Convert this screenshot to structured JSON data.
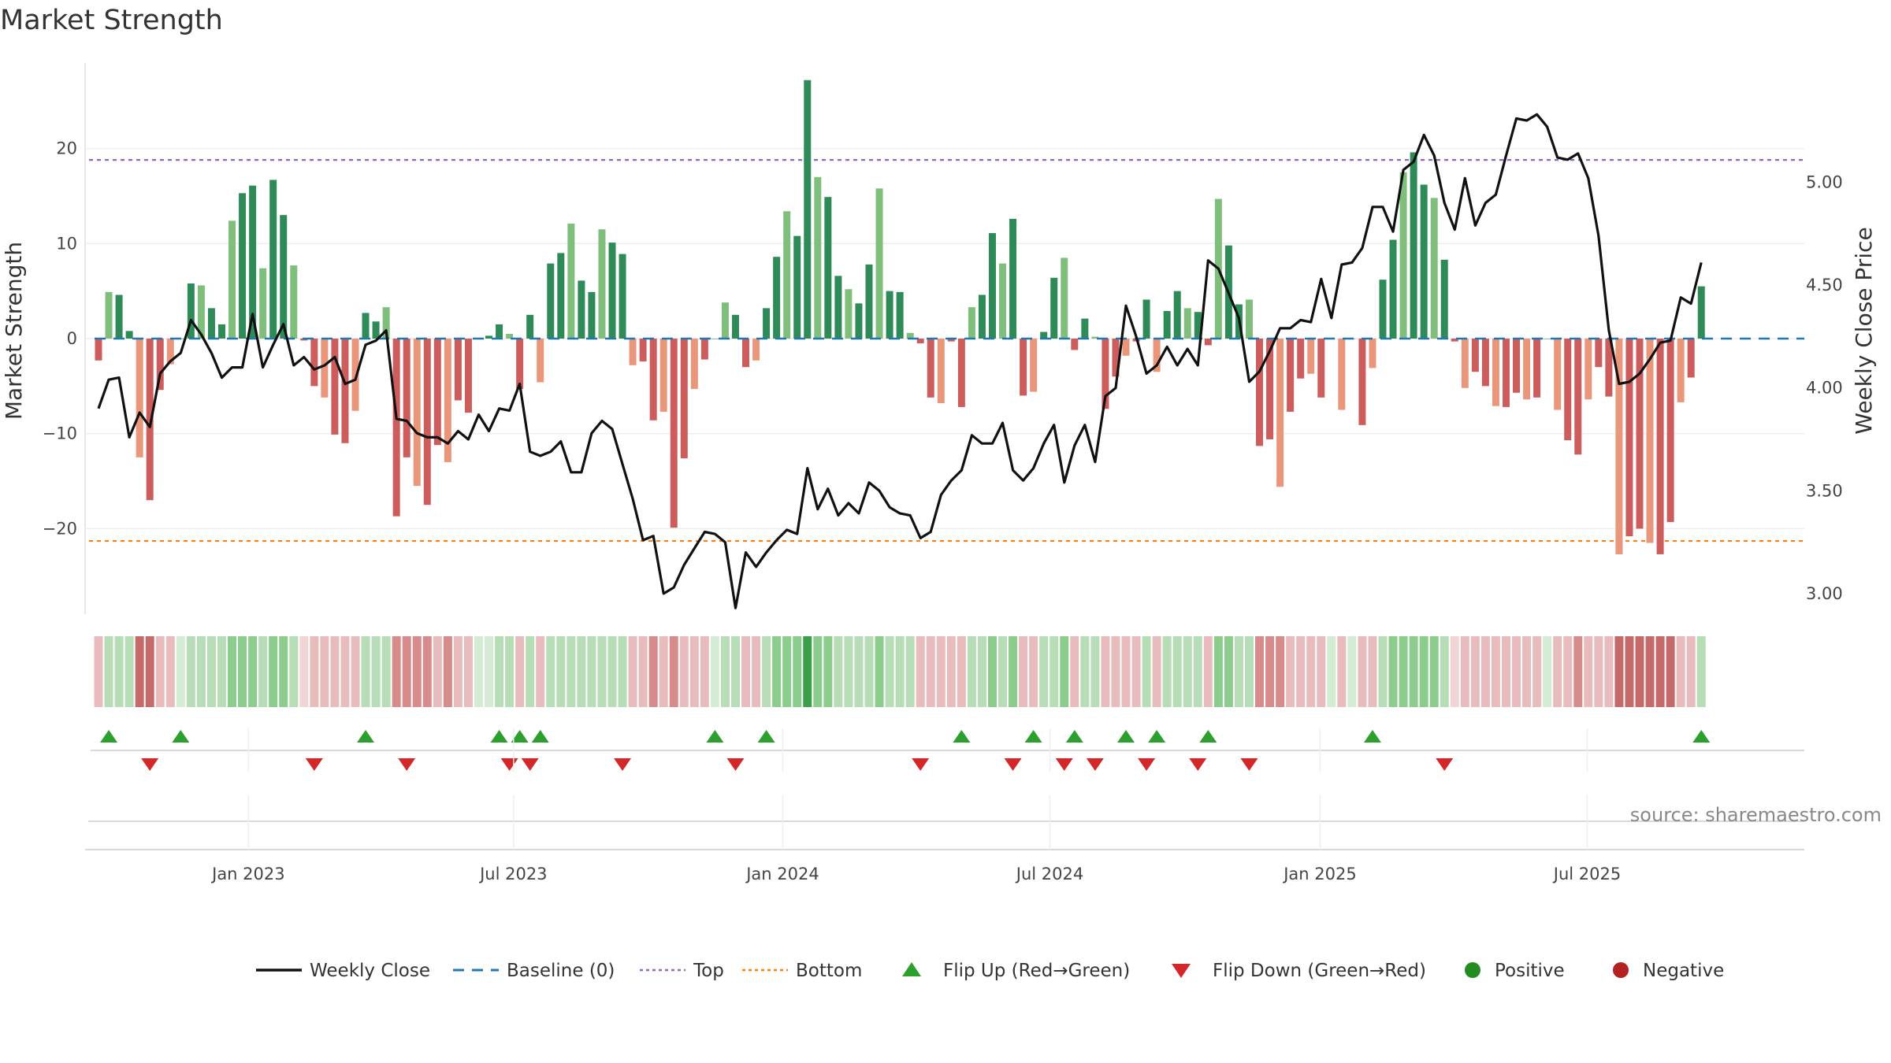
{
  "title": "Market Strength",
  "source": "source: sharemaestro.com",
  "colors": {
    "pos_strong": "#2e8b57",
    "pos_light": "#7fbf7b",
    "neg_strong": "#cd5c5c",
    "neg_light": "#e9967a",
    "price_line": "#111111",
    "baseline": "#1f77b4",
    "top": "#9467bd",
    "bottom": "#ff7f0e",
    "flip_up": "#2ca02c",
    "flip_down": "#d62728",
    "positive": "#228b22",
    "negative": "#b22222"
  },
  "legend": [
    {
      "label": "Weekly Close",
      "kind": "line"
    },
    {
      "label": "Baseline (0)",
      "kind": "dash"
    },
    {
      "label": "Top",
      "kind": "dot-purple"
    },
    {
      "label": "Bottom",
      "kind": "dot-orange"
    },
    {
      "label": "Flip Up (Red→Green)",
      "kind": "tri-up"
    },
    {
      "label": "Flip Down (Green→Red)",
      "kind": "tri-down"
    },
    {
      "label": "Positive",
      "kind": "circle-green"
    },
    {
      "label": "Negative",
      "kind": "circle-red"
    }
  ],
  "chart_data": {
    "type": "bar",
    "title": "Market Strength",
    "ylabel": "Market Strength",
    "y2label": "Weekly Close Price",
    "ylim": [
      -29,
      29
    ],
    "y2lim": [
      2.9,
      5.58
    ],
    "yticks": [
      20,
      10,
      0,
      -10,
      -20
    ],
    "yticklabels": [
      "20",
      "10",
      "0",
      "−10",
      "−20"
    ],
    "y2ticks": [
      5.0,
      4.5,
      4.0,
      3.5,
      3.0
    ],
    "y2ticklabels": [
      "5.00",
      "4.50",
      "4.00",
      "3.50",
      "3.00"
    ],
    "x_tick_labels": [
      "Jan 2023",
      "Jul 2023",
      "Jan 2024",
      "Jul 2024",
      "Jan 2025",
      "Jul 2025"
    ],
    "x_tick_weeks": [
      14.6,
      40.4,
      66.6,
      92.6,
      118.9,
      144.9
    ],
    "top_threshold": 18.8,
    "bottom_threshold": -21.3,
    "baseline": 0,
    "strength": [
      -2.3,
      4.9,
      4.6,
      0.8,
      -12.5,
      -17.0,
      -5.4,
      -2.7,
      0,
      5.8,
      5.6,
      3.2,
      1.5,
      12.4,
      15.3,
      16.1,
      7.4,
      16.7,
      13.0,
      7.7,
      -0.2,
      -5.0,
      -6.2,
      -10.1,
      -11.0,
      -7.6,
      2.7,
      1.8,
      3.3,
      -18.7,
      -12.5,
      -15.5,
      -17.5,
      -11.2,
      -13.0,
      -6.5,
      -7.8,
      0,
      0.3,
      1.5,
      0.5,
      -5.3,
      2.5,
      -4.6,
      7.9,
      9.0,
      12.1,
      6.1,
      4.9,
      11.5,
      10.1,
      8.9,
      -2.8,
      -2.4,
      -8.6,
      -7.7,
      -19.9,
      -12.6,
      -5.3,
      -2.2,
      0,
      3.8,
      2.5,
      -3.0,
      -2.3,
      3.2,
      8.6,
      13.4,
      10.8,
      27.2,
      17.0,
      14.9,
      6.6,
      5.2,
      3.7,
      7.8,
      15.8,
      5.0,
      4.9,
      0.6,
      -0.5,
      -6.2,
      -6.8,
      -0.3,
      -7.2,
      3.3,
      4.6,
      11.1,
      7.9,
      12.6,
      -6.0,
      -5.6,
      0.7,
      6.4,
      8.5,
      -1.2,
      2.1,
      0.2,
      -7.4,
      -4.0,
      -1.8,
      -0.3,
      4.1,
      -3.5,
      2.9,
      5.0,
      3.2,
      2.8,
      -0.7,
      14.7,
      9.8,
      3.6,
      4.1,
      -11.3,
      -10.6,
      -15.6,
      -7.7,
      -4.2,
      -3.7,
      -6.2,
      0,
      -7.5,
      0,
      -9.1,
      -3.1,
      6.2,
      10.4,
      17.5,
      19.6,
      16.2,
      14.8,
      8.3,
      -0.3,
      -5.2,
      -3.5,
      -5.0,
      -7.1,
      -7.2,
      -5.7,
      -6.4,
      -6.2,
      0,
      -7.5,
      -10.7,
      -12.2,
      -6.4,
      -3.0,
      -6.1,
      -22.7,
      -20.8,
      -20.0,
      -21.5,
      -22.7,
      -19.3,
      -6.7,
      -4.1,
      5.5
    ],
    "close": [
      3.9,
      4.04,
      4.05,
      3.76,
      3.88,
      3.81,
      4.07,
      4.13,
      4.17,
      4.33,
      4.26,
      4.17,
      4.05,
      4.1,
      4.1,
      4.36,
      4.1,
      4.21,
      4.31,
      4.11,
      4.15,
      4.09,
      4.11,
      4.15,
      4.02,
      4.04,
      4.21,
      4.23,
      4.28,
      3.85,
      3.84,
      3.78,
      3.76,
      3.76,
      3.73,
      3.79,
      3.75,
      3.87,
      3.79,
      3.9,
      3.89,
      4.02,
      3.69,
      3.67,
      3.69,
      3.74,
      3.59,
      3.59,
      3.78,
      3.84,
      3.8,
      3.63,
      3.46,
      3.26,
      3.28,
      3.0,
      3.03,
      3.14,
      3.22,
      3.3,
      3.29,
      3.25,
      2.93,
      3.2,
      3.13,
      3.2,
      3.26,
      3.31,
      3.29,
      3.61,
      3.41,
      3.51,
      3.38,
      3.44,
      3.39,
      3.54,
      3.5,
      3.42,
      3.39,
      3.38,
      3.27,
      3.3,
      3.48,
      3.55,
      3.6,
      3.77,
      3.73,
      3.73,
      3.83,
      3.6,
      3.55,
      3.61,
      3.73,
      3.82,
      3.54,
      3.72,
      3.82,
      3.64,
      3.96,
      4.0,
      4.4,
      4.25,
      4.07,
      4.11,
      4.2,
      4.11,
      4.19,
      4.11,
      4.62,
      4.58,
      4.46,
      4.34,
      4.03,
      4.08,
      4.18,
      4.29,
      4.29,
      4.33,
      4.32,
      4.53,
      4.34,
      4.6,
      4.61,
      4.68,
      4.88,
      4.88,
      4.76,
      5.06,
      5.1,
      5.23,
      5.13,
      4.9,
      4.77,
      5.02,
      4.79,
      4.9,
      4.94,
      5.13,
      5.31,
      5.3,
      5.33,
      5.27,
      5.12,
      5.11,
      5.14,
      5.02,
      4.74,
      4.28,
      4.02,
      4.03,
      4.07,
      4.14,
      4.22,
      4.23,
      4.44,
      4.41,
      4.61
    ],
    "shading": [
      1,
      1,
      1,
      1,
      3,
      3,
      1,
      1,
      0,
      1,
      1,
      1,
      1,
      2,
      2,
      2,
      1,
      2,
      2,
      1,
      0,
      1,
      1,
      1,
      1,
      1,
      1,
      1,
      1,
      2,
      2,
      2,
      2,
      1,
      2,
      1,
      1,
      0,
      0,
      1,
      1,
      1,
      1,
      1,
      1,
      1,
      1,
      1,
      1,
      1,
      1,
      1,
      1,
      1,
      2,
      1,
      2,
      1,
      1,
      1,
      0,
      1,
      1,
      1,
      1,
      1,
      2,
      2,
      2,
      3,
      2,
      2,
      1,
      1,
      1,
      1,
      2,
      1,
      1,
      1,
      1,
      1,
      1,
      1,
      1,
      1,
      1,
      2,
      1,
      2,
      1,
      1,
      1,
      1,
      2,
      1,
      1,
      1,
      1,
      1,
      1,
      1,
      1,
      1,
      1,
      1,
      1,
      1,
      1,
      2,
      2,
      1,
      1,
      2,
      2,
      2,
      1,
      1,
      1,
      1,
      0,
      1,
      0,
      1,
      1,
      1,
      2,
      2,
      2,
      2,
      2,
      1,
      0,
      1,
      1,
      1,
      1,
      1,
      1,
      1,
      1,
      0,
      1,
      1,
      2,
      1,
      1,
      1,
      3,
      3,
      3,
      3,
      3,
      3,
      1,
      1,
      1
    ],
    "flip_up_weeks": [
      1,
      8,
      26,
      39,
      41,
      43,
      60,
      65,
      84,
      91,
      95,
      100,
      103,
      108,
      124,
      156
    ],
    "flip_down_weeks": [
      5,
      21,
      30,
      40,
      42,
      51,
      62,
      80,
      89,
      94,
      97,
      102,
      107,
      112,
      131
    ]
  }
}
